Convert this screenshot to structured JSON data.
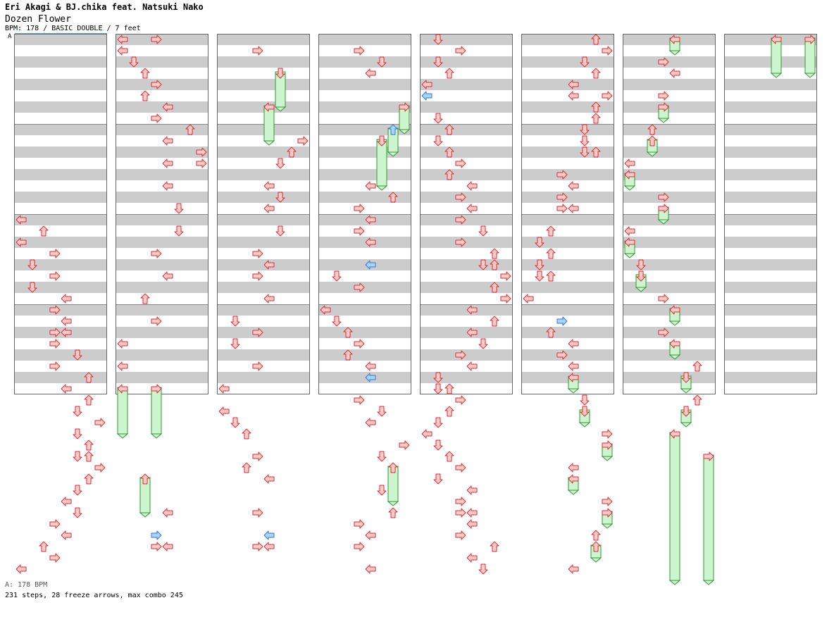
{
  "header": {
    "artist": "Eri Akagi & BJ.chika feat. Natsuki Nako",
    "title": "Dozen Flower",
    "meta": "BPM: 178 / BASIC DOUBLE / 7 feet",
    "bpm_marker": "A"
  },
  "footer": {
    "bpm_info": "A: 178 BPM",
    "stats": "231 steps, 28 freeze arrows, max combo 245"
  },
  "colors": {
    "arrow_fill": "#ffc8c8",
    "arrow_stroke": "#d23232",
    "shock_fill": "#a6d4ff",
    "shock_stroke": "#3278c8",
    "freeze_fill": "#cdf5cd",
    "freeze_stroke": "#329632",
    "stripe_gray": "#cccccc",
    "stripe_white": "#ffffff"
  },
  "chart_data": {
    "type": "step-chart",
    "style": "BASIC DOUBLE",
    "bpm": 178,
    "level_feet": 7,
    "lanes_per_column": 8,
    "measures_per_column": 4,
    "rows_per_measure": 8,
    "columns": 8,
    "notes": [
      {
        "c": 0,
        "r": 16,
        "l": 0
      },
      {
        "c": 0,
        "r": 17,
        "l": 2
      },
      {
        "c": 0,
        "r": 18,
        "l": 0
      },
      {
        "c": 0,
        "r": 19,
        "l": 3
      },
      {
        "c": 0,
        "r": 20,
        "l": 1
      },
      {
        "c": 0,
        "r": 21,
        "l": 3
      },
      {
        "c": 0,
        "r": 22,
        "l": 1
      },
      {
        "c": 0,
        "r": 23,
        "l": 4
      },
      {
        "c": 0,
        "r": 24,
        "l": 3
      },
      {
        "c": 0,
        "r": 25,
        "l": 4
      },
      {
        "c": 0,
        "r": 26,
        "l": 3
      },
      {
        "c": 0,
        "r": 26,
        "l": 4
      },
      {
        "c": 0,
        "r": 27,
        "l": 3
      },
      {
        "c": 0,
        "r": 28,
        "l": 5
      },
      {
        "c": 0,
        "r": 29,
        "l": 3
      },
      {
        "c": 0,
        "r": 30,
        "l": 6
      },
      {
        "c": 0,
        "r": 31,
        "l": 4
      },
      {
        "c": 0,
        "r": 32,
        "l": 6
      },
      {
        "c": 0,
        "r": 33,
        "l": 5
      },
      {
        "c": 0,
        "r": 34,
        "l": 7
      },
      {
        "c": 0,
        "r": 35,
        "l": 5
      },
      {
        "c": 0,
        "r": 36,
        "l": 6
      },
      {
        "c": 0,
        "r": 37,
        "l": 5
      },
      {
        "c": 0,
        "r": 37,
        "l": 6
      },
      {
        "c": 0,
        "r": 38,
        "l": 7
      },
      {
        "c": 0,
        "r": 39,
        "l": 6
      },
      {
        "c": 0,
        "r": 40,
        "l": 5
      },
      {
        "c": 0,
        "r": 41,
        "l": 4
      },
      {
        "c": 0,
        "r": 42,
        "l": 5
      },
      {
        "c": 0,
        "r": 43,
        "l": 3
      },
      {
        "c": 0,
        "r": 44,
        "l": 4
      },
      {
        "c": 0,
        "r": 45,
        "l": 2
      },
      {
        "c": 0,
        "r": 46,
        "l": 3
      },
      {
        "c": 0,
        "r": 47,
        "l": 0
      },
      {
        "c": 1,
        "r": 0,
        "l": 0
      },
      {
        "c": 1,
        "r": 0,
        "l": 3
      },
      {
        "c": 1,
        "r": 1,
        "l": 0
      },
      {
        "c": 1,
        "r": 2,
        "l": 1
      },
      {
        "c": 1,
        "r": 3,
        "l": 2
      },
      {
        "c": 1,
        "r": 4,
        "l": 3
      },
      {
        "c": 1,
        "r": 5,
        "l": 2
      },
      {
        "c": 1,
        "r": 6,
        "l": 4
      },
      {
        "c": 1,
        "r": 7,
        "l": 3
      },
      {
        "c": 1,
        "r": 8,
        "l": 6
      },
      {
        "c": 1,
        "r": 9,
        "l": 4
      },
      {
        "c": 1,
        "r": 10,
        "l": 7
      },
      {
        "c": 1,
        "r": 11,
        "l": 4
      },
      {
        "c": 1,
        "r": 11,
        "l": 7
      },
      {
        "c": 1,
        "r": 13,
        "l": 4
      },
      {
        "c": 1,
        "r": 15,
        "l": 5
      },
      {
        "c": 1,
        "r": 17,
        "l": 5
      },
      {
        "c": 1,
        "r": 19,
        "l": 3
      },
      {
        "c": 1,
        "r": 21,
        "l": 4
      },
      {
        "c": 1,
        "r": 23,
        "l": 2
      },
      {
        "c": 1,
        "r": 25,
        "l": 3
      },
      {
        "c": 1,
        "r": 27,
        "l": 0
      },
      {
        "c": 1,
        "r": 29,
        "l": 0
      },
      {
        "c": 1,
        "r": 31,
        "l": 0,
        "f": 4
      },
      {
        "c": 1,
        "r": 31,
        "l": 3,
        "f": 4
      },
      {
        "c": 1,
        "r": 39,
        "l": 2,
        "f": 3
      },
      {
        "c": 1,
        "r": 42,
        "l": 4
      },
      {
        "c": 1,
        "r": 44,
        "l": 3,
        "s": 1
      },
      {
        "c": 1,
        "r": 45,
        "l": 3
      },
      {
        "c": 1,
        "r": 45,
        "l": 4
      },
      {
        "c": 2,
        "r": 1,
        "l": 3
      },
      {
        "c": 2,
        "r": 3,
        "l": 5,
        "f": 3
      },
      {
        "c": 2,
        "r": 6,
        "l": 4,
        "f": 3
      },
      {
        "c": 2,
        "r": 9,
        "l": 7
      },
      {
        "c": 2,
        "r": 10,
        "l": 6
      },
      {
        "c": 2,
        "r": 11,
        "l": 5
      },
      {
        "c": 2,
        "r": 13,
        "l": 4
      },
      {
        "c": 2,
        "r": 14,
        "l": 5
      },
      {
        "c": 2,
        "r": 15,
        "l": 4
      },
      {
        "c": 2,
        "r": 17,
        "l": 5
      },
      {
        "c": 2,
        "r": 19,
        "l": 3
      },
      {
        "c": 2,
        "r": 20,
        "l": 4
      },
      {
        "c": 2,
        "r": 21,
        "l": 3
      },
      {
        "c": 2,
        "r": 23,
        "l": 4
      },
      {
        "c": 2,
        "r": 25,
        "l": 1
      },
      {
        "c": 2,
        "r": 26,
        "l": 3
      },
      {
        "c": 2,
        "r": 27,
        "l": 1
      },
      {
        "c": 2,
        "r": 29,
        "l": 3
      },
      {
        "c": 2,
        "r": 31,
        "l": 0
      },
      {
        "c": 2,
        "r": 33,
        "l": 0
      },
      {
        "c": 2,
        "r": 34,
        "l": 1
      },
      {
        "c": 2,
        "r": 35,
        "l": 2
      },
      {
        "c": 2,
        "r": 37,
        "l": 3
      },
      {
        "c": 2,
        "r": 38,
        "l": 2
      },
      {
        "c": 2,
        "r": 39,
        "l": 4
      },
      {
        "c": 2,
        "r": 42,
        "l": 3
      },
      {
        "c": 2,
        "r": 44,
        "l": 4,
        "s": 1
      },
      {
        "c": 2,
        "r": 45,
        "l": 3
      },
      {
        "c": 2,
        "r": 45,
        "l": 4
      },
      {
        "c": 3,
        "r": 1,
        "l": 3
      },
      {
        "c": 3,
        "r": 2,
        "l": 5
      },
      {
        "c": 3,
        "r": 3,
        "l": 4
      },
      {
        "c": 3,
        "r": 6,
        "l": 7,
        "f": 2
      },
      {
        "c": 3,
        "r": 8,
        "l": 6,
        "s": 1,
        "f": 2
      },
      {
        "c": 3,
        "r": 9,
        "l": 5,
        "f": 4
      },
      {
        "c": 3,
        "r": 13,
        "l": 4
      },
      {
        "c": 3,
        "r": 14,
        "l": 6
      },
      {
        "c": 3,
        "r": 15,
        "l": 3
      },
      {
        "c": 3,
        "r": 16,
        "l": 4
      },
      {
        "c": 3,
        "r": 17,
        "l": 3
      },
      {
        "c": 3,
        "r": 18,
        "l": 4
      },
      {
        "c": 3,
        "r": 20,
        "l": 4,
        "s": 1
      },
      {
        "c": 3,
        "r": 21,
        "l": 1
      },
      {
        "c": 3,
        "r": 22,
        "l": 3
      },
      {
        "c": 3,
        "r": 24,
        "l": 0
      },
      {
        "c": 3,
        "r": 25,
        "l": 1
      },
      {
        "c": 3,
        "r": 26,
        "l": 2
      },
      {
        "c": 3,
        "r": 27,
        "l": 3
      },
      {
        "c": 3,
        "r": 28,
        "l": 2
      },
      {
        "c": 3,
        "r": 29,
        "l": 4
      },
      {
        "c": 3,
        "r": 30,
        "l": 4,
        "s": 1
      },
      {
        "c": 3,
        "r": 32,
        "l": 3
      },
      {
        "c": 3,
        "r": 33,
        "l": 5
      },
      {
        "c": 3,
        "r": 34,
        "l": 4
      },
      {
        "c": 3,
        "r": 36,
        "l": 7
      },
      {
        "c": 3,
        "r": 37,
        "l": 5
      },
      {
        "c": 3,
        "r": 38,
        "l": 6,
        "f": 3
      },
      {
        "c": 3,
        "r": 40,
        "l": 5
      },
      {
        "c": 3,
        "r": 42,
        "l": 6
      },
      {
        "c": 3,
        "r": 43,
        "l": 3
      },
      {
        "c": 3,
        "r": 44,
        "l": 4
      },
      {
        "c": 3,
        "r": 45,
        "l": 3
      },
      {
        "c": 3,
        "r": 47,
        "l": 4
      },
      {
        "c": 4,
        "r": 0,
        "l": 1
      },
      {
        "c": 4,
        "r": 1,
        "l": 3
      },
      {
        "c": 4,
        "r": 2,
        "l": 1
      },
      {
        "c": 4,
        "r": 3,
        "l": 2
      },
      {
        "c": 4,
        "r": 4,
        "l": 0
      },
      {
        "c": 4,
        "r": 5,
        "l": 0,
        "s": 1
      },
      {
        "c": 4,
        "r": 7,
        "l": 1
      },
      {
        "c": 4,
        "r": 8,
        "l": 2
      },
      {
        "c": 4,
        "r": 9,
        "l": 1
      },
      {
        "c": 4,
        "r": 10,
        "l": 2
      },
      {
        "c": 4,
        "r": 11,
        "l": 3
      },
      {
        "c": 4,
        "r": 12,
        "l": 2
      },
      {
        "c": 4,
        "r": 13,
        "l": 4
      },
      {
        "c": 4,
        "r": 14,
        "l": 3
      },
      {
        "c": 4,
        "r": 15,
        "l": 4
      },
      {
        "c": 4,
        "r": 16,
        "l": 3
      },
      {
        "c": 4,
        "r": 17,
        "l": 5
      },
      {
        "c": 4,
        "r": 18,
        "l": 3
      },
      {
        "c": 4,
        "r": 19,
        "l": 6
      },
      {
        "c": 4,
        "r": 20,
        "l": 5
      },
      {
        "c": 4,
        "r": 20,
        "l": 6
      },
      {
        "c": 4,
        "r": 21,
        "l": 7
      },
      {
        "c": 4,
        "r": 22,
        "l": 6
      },
      {
        "c": 4,
        "r": 23,
        "l": 7
      },
      {
        "c": 4,
        "r": 24,
        "l": 4
      },
      {
        "c": 4,
        "r": 25,
        "l": 6
      },
      {
        "c": 4,
        "r": 26,
        "l": 4
      },
      {
        "c": 4,
        "r": 27,
        "l": 5
      },
      {
        "c": 4,
        "r": 28,
        "l": 3
      },
      {
        "c": 4,
        "r": 29,
        "l": 4
      },
      {
        "c": 4,
        "r": 30,
        "l": 1
      },
      {
        "c": 4,
        "r": 31,
        "l": 1
      },
      {
        "c": 4,
        "r": 31,
        "l": 2
      },
      {
        "c": 4,
        "r": 32,
        "l": 3
      },
      {
        "c": 4,
        "r": 33,
        "l": 2
      },
      {
        "c": 4,
        "r": 34,
        "l": 1
      },
      {
        "c": 4,
        "r": 35,
        "l": 0
      },
      {
        "c": 4,
        "r": 36,
        "l": 1
      },
      {
        "c": 4,
        "r": 37,
        "l": 2
      },
      {
        "c": 4,
        "r": 38,
        "l": 3
      },
      {
        "c": 4,
        "r": 39,
        "l": 1
      },
      {
        "c": 4,
        "r": 40,
        "l": 4
      },
      {
        "c": 4,
        "r": 41,
        "l": 3
      },
      {
        "c": 4,
        "r": 42,
        "l": 3
      },
      {
        "c": 4,
        "r": 42,
        "l": 4
      },
      {
        "c": 4,
        "r": 43,
        "l": 4
      },
      {
        "c": 4,
        "r": 44,
        "l": 3
      },
      {
        "c": 4,
        "r": 45,
        "l": 6
      },
      {
        "c": 4,
        "r": 46,
        "l": 4
      },
      {
        "c": 4,
        "r": 47,
        "l": 5
      },
      {
        "c": 5,
        "r": 0,
        "l": 6
      },
      {
        "c": 5,
        "r": 1,
        "l": 7
      },
      {
        "c": 5,
        "r": 2,
        "l": 5
      },
      {
        "c": 5,
        "r": 3,
        "l": 6
      },
      {
        "c": 5,
        "r": 4,
        "l": 4
      },
      {
        "c": 5,
        "r": 5,
        "l": 4
      },
      {
        "c": 5,
        "r": 5,
        "l": 7
      },
      {
        "c": 5,
        "r": 6,
        "l": 6
      },
      {
        "c": 5,
        "r": 7,
        "l": 6
      },
      {
        "c": 5,
        "r": 8,
        "l": 5
      },
      {
        "c": 5,
        "r": 9,
        "l": 5
      },
      {
        "c": 5,
        "r": 10,
        "l": 5
      },
      {
        "c": 5,
        "r": 10,
        "l": 6
      },
      {
        "c": 5,
        "r": 12,
        "l": 3
      },
      {
        "c": 5,
        "r": 13,
        "l": 4
      },
      {
        "c": 5,
        "r": 14,
        "l": 3
      },
      {
        "c": 5,
        "r": 15,
        "l": 3
      },
      {
        "c": 5,
        "r": 15,
        "l": 4
      },
      {
        "c": 5,
        "r": 17,
        "l": 2
      },
      {
        "c": 5,
        "r": 18,
        "l": 1
      },
      {
        "c": 5,
        "r": 19,
        "l": 2
      },
      {
        "c": 5,
        "r": 20,
        "l": 1
      },
      {
        "c": 5,
        "r": 21,
        "l": 1
      },
      {
        "c": 5,
        "r": 21,
        "l": 2
      },
      {
        "c": 5,
        "r": 23,
        "l": 0
      },
      {
        "c": 5,
        "r": 25,
        "l": 3,
        "s": 1
      },
      {
        "c": 5,
        "r": 26,
        "l": 2
      },
      {
        "c": 5,
        "r": 27,
        "l": 4
      },
      {
        "c": 5,
        "r": 28,
        "l": 3
      },
      {
        "c": 5,
        "r": 29,
        "l": 4
      },
      {
        "c": 5,
        "r": 30,
        "l": 4,
        "f": 1
      },
      {
        "c": 5,
        "r": 32,
        "l": 5
      },
      {
        "c": 5,
        "r": 33,
        "l": 5,
        "f": 1
      },
      {
        "c": 5,
        "r": 35,
        "l": 7
      },
      {
        "c": 5,
        "r": 36,
        "l": 7,
        "f": 1
      },
      {
        "c": 5,
        "r": 38,
        "l": 4
      },
      {
        "c": 5,
        "r": 39,
        "l": 4,
        "f": 1
      },
      {
        "c": 5,
        "r": 41,
        "l": 7
      },
      {
        "c": 5,
        "r": 42,
        "l": 7,
        "f": 1
      },
      {
        "c": 5,
        "r": 44,
        "l": 6
      },
      {
        "c": 5,
        "r": 45,
        "l": 6,
        "f": 1
      },
      {
        "c": 5,
        "r": 47,
        "l": 4
      },
      {
        "c": 6,
        "r": 0,
        "l": 4,
        "f": 1
      },
      {
        "c": 6,
        "r": 2,
        "l": 3
      },
      {
        "c": 6,
        "r": 3,
        "l": 4
      },
      {
        "c": 6,
        "r": 5,
        "l": 3
      },
      {
        "c": 6,
        "r": 6,
        "l": 3,
        "f": 1
      },
      {
        "c": 6,
        "r": 8,
        "l": 2
      },
      {
        "c": 6,
        "r": 9,
        "l": 2,
        "f": 1
      },
      {
        "c": 6,
        "r": 11,
        "l": 0
      },
      {
        "c": 6,
        "r": 12,
        "l": 0,
        "f": 1
      },
      {
        "c": 6,
        "r": 14,
        "l": 3
      },
      {
        "c": 6,
        "r": 15,
        "l": 3,
        "f": 1
      },
      {
        "c": 6,
        "r": 17,
        "l": 0
      },
      {
        "c": 6,
        "r": 18,
        "l": 0,
        "f": 1
      },
      {
        "c": 6,
        "r": 20,
        "l": 1
      },
      {
        "c": 6,
        "r": 21,
        "l": 1,
        "f": 1
      },
      {
        "c": 6,
        "r": 23,
        "l": 3
      },
      {
        "c": 6,
        "r": 24,
        "l": 4,
        "f": 1
      },
      {
        "c": 6,
        "r": 26,
        "l": 3
      },
      {
        "c": 6,
        "r": 27,
        "l": 4,
        "f": 1
      },
      {
        "c": 6,
        "r": 29,
        "l": 6
      },
      {
        "c": 6,
        "r": 30,
        "l": 5,
        "f": 1
      },
      {
        "c": 6,
        "r": 32,
        "l": 6
      },
      {
        "c": 6,
        "r": 33,
        "l": 5,
        "f": 1
      },
      {
        "c": 6,
        "r": 35,
        "l": 4,
        "f": 13
      },
      {
        "c": 6,
        "r": 37,
        "l": 7,
        "f": 11
      },
      {
        "c": 7,
        "r": 0,
        "l": 4,
        "f": 3
      },
      {
        "c": 7,
        "r": 0,
        "l": 7,
        "f": 3
      }
    ]
  }
}
